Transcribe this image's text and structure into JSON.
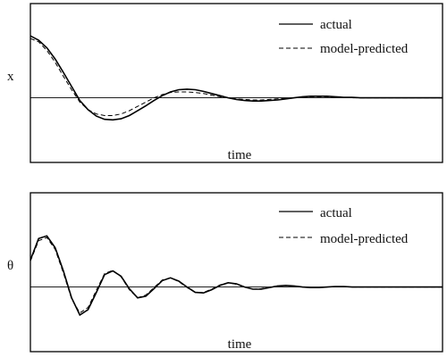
{
  "chart_data": [
    {
      "type": "line",
      "ylabel": "x",
      "xlabel": "time",
      "xlim": [
        0,
        100
      ],
      "ylim": [
        -1.2,
        1.75
      ],
      "legend_position": "top-right",
      "grid": false,
      "series": [
        {
          "name": "actual",
          "style": "solid",
          "x": [
            0,
            2,
            4,
            6,
            8,
            10,
            12,
            14,
            16,
            18,
            20,
            22,
            24,
            26,
            28,
            30,
            32,
            34,
            36,
            38,
            40,
            42,
            44,
            46,
            48,
            50,
            52,
            54,
            56,
            58,
            60,
            62,
            64,
            66,
            68,
            70,
            72,
            74,
            76,
            78,
            80,
            82,
            84,
            86,
            88,
            90,
            92,
            94,
            96,
            98,
            100
          ],
          "y": [
            1.15,
            1.07,
            0.93,
            0.72,
            0.47,
            0.21,
            -0.05,
            -0.22,
            -0.34,
            -0.4,
            -0.41,
            -0.39,
            -0.33,
            -0.24,
            -0.15,
            -0.05,
            0.04,
            0.11,
            0.15,
            0.16,
            0.15,
            0.12,
            0.08,
            0.04,
            0.0,
            -0.03,
            -0.05,
            -0.06,
            -0.06,
            -0.05,
            -0.04,
            -0.02,
            0.0,
            0.02,
            0.03,
            0.03,
            0.03,
            0.02,
            0.01,
            0.01,
            0.0,
            0.0,
            0.0,
            0.0,
            0.0,
            0.0,
            0.0,
            0.0,
            0.0,
            0.0,
            0.0
          ]
        },
        {
          "name": "model-predicted",
          "style": "dashed",
          "x": [
            0,
            2,
            4,
            6,
            8,
            10,
            12,
            14,
            16,
            18,
            20,
            22,
            24,
            26,
            28,
            30,
            32,
            34,
            36,
            38,
            40,
            42,
            44,
            46,
            48,
            50,
            52,
            54,
            56,
            58,
            60,
            62,
            64,
            66,
            68,
            70,
            72,
            74,
            76,
            78,
            80,
            82,
            84,
            86,
            88,
            90,
            92,
            94,
            96,
            98,
            100
          ],
          "y": [
            1.1,
            1.04,
            0.88,
            0.66,
            0.4,
            0.15,
            -0.08,
            -0.22,
            -0.3,
            -0.33,
            -0.33,
            -0.3,
            -0.24,
            -0.16,
            -0.08,
            0.0,
            0.06,
            0.1,
            0.11,
            0.11,
            0.1,
            0.08,
            0.05,
            0.02,
            0.0,
            -0.02,
            -0.03,
            -0.04,
            -0.04,
            -0.03,
            -0.02,
            -0.01,
            0.0,
            0.01,
            0.02,
            0.02,
            0.02,
            0.01,
            0.01,
            0.0,
            0.0,
            0.0,
            0.0,
            0.0,
            0.0,
            0.0,
            0.0,
            0.0,
            0.0,
            0.0,
            0.0
          ]
        }
      ]
    },
    {
      "type": "line",
      "ylabel": "θ",
      "xlabel": "time",
      "xlim": [
        0,
        100
      ],
      "ylim": [
        -1.2,
        1.75
      ],
      "legend_position": "top-right",
      "grid": false,
      "series": [
        {
          "name": "actual",
          "style": "solid",
          "x": [
            0,
            2,
            4,
            6,
            8,
            10,
            12,
            14,
            16,
            18,
            20,
            22,
            24,
            26,
            28,
            30,
            32,
            34,
            36,
            38,
            40,
            42,
            44,
            46,
            48,
            50,
            52,
            54,
            56,
            58,
            60,
            62,
            64,
            66,
            68,
            70,
            72,
            74,
            76,
            78,
            80,
            82,
            84,
            86,
            88,
            90,
            92,
            94,
            96,
            98,
            100
          ],
          "y": [
            0.5,
            0.9,
            0.95,
            0.73,
            0.3,
            -0.2,
            -0.52,
            -0.42,
            -0.1,
            0.23,
            0.3,
            0.2,
            -0.03,
            -0.2,
            -0.17,
            -0.03,
            0.12,
            0.17,
            0.11,
            0.0,
            -0.1,
            -0.11,
            -0.05,
            0.03,
            0.08,
            0.06,
            0.0,
            -0.04,
            -0.04,
            -0.01,
            0.02,
            0.03,
            0.02,
            0.0,
            -0.01,
            -0.01,
            0.0,
            0.01,
            0.01,
            0.0,
            0.0,
            0.0,
            0.0,
            0.0,
            0.0,
            0.0,
            0.0,
            0.0,
            0.0,
            0.0,
            0.0
          ]
        },
        {
          "name": "model-predicted",
          "style": "dashed",
          "x": [
            0,
            2,
            4,
            6,
            8,
            10,
            12,
            14,
            16,
            18,
            20,
            22,
            24,
            26,
            28,
            30,
            32,
            34,
            36,
            38,
            40,
            42,
            44,
            46,
            48,
            50,
            52,
            54,
            56,
            58,
            60,
            62,
            64,
            66,
            68,
            70,
            72,
            74,
            76,
            78,
            80,
            82,
            84,
            86,
            88,
            90,
            92,
            94,
            96,
            98,
            100
          ],
          "y": [
            0.48,
            0.86,
            0.92,
            0.7,
            0.26,
            -0.22,
            -0.48,
            -0.38,
            -0.06,
            0.25,
            0.31,
            0.19,
            -0.05,
            -0.2,
            -0.15,
            -0.01,
            0.13,
            0.17,
            0.1,
            -0.01,
            -0.1,
            -0.1,
            -0.04,
            0.04,
            0.08,
            0.05,
            0.0,
            -0.04,
            -0.03,
            0.0,
            0.02,
            0.03,
            0.02,
            0.0,
            -0.01,
            -0.01,
            0.0,
            0.01,
            0.01,
            0.0,
            0.0,
            0.0,
            0.0,
            0.0,
            0.0,
            0.0,
            0.0,
            0.0,
            0.0,
            0.0,
            0.0
          ]
        }
      ]
    }
  ]
}
